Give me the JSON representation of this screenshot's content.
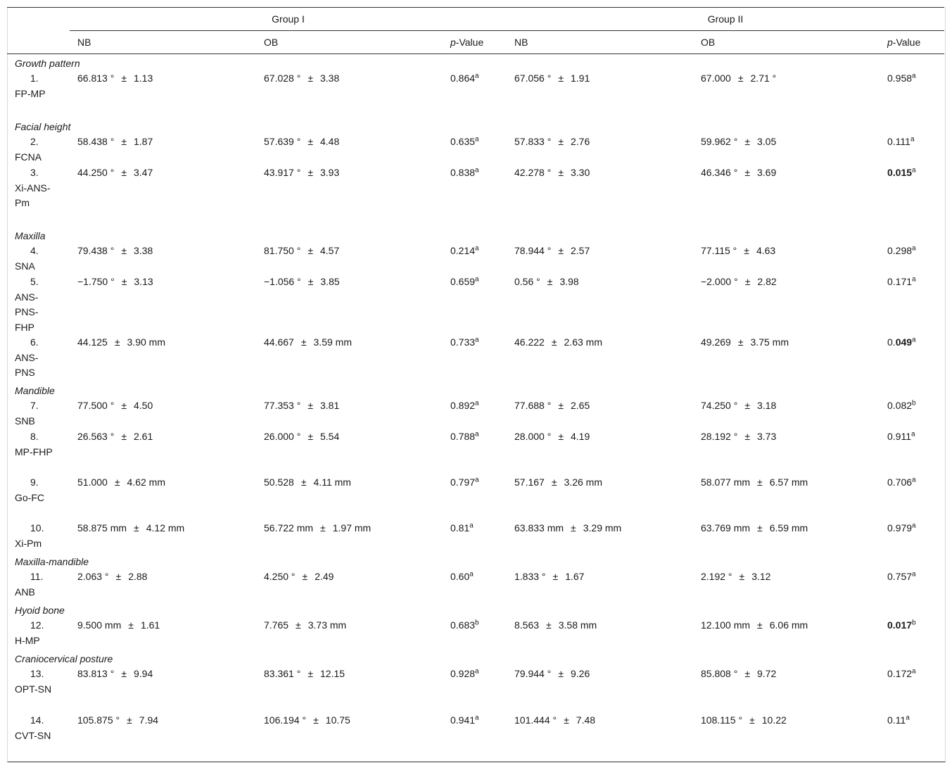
{
  "header": {
    "group1": "Group I",
    "group2": "Group II",
    "columns": [
      "NB",
      "OB",
      "p-Value",
      "NB",
      "OB",
      "p-Value"
    ]
  },
  "sections": [
    {
      "title": "Growth pattern",
      "rows": [
        {
          "num": "1.",
          "label": "FP-MP",
          "g1_nb": "66.813 °  ±  1.13",
          "g1_ob": "67.028 °  ±  3.38",
          "g1_p": "0.864",
          "g1_sup": "a",
          "g2_nb": "67.056 °  ±  1.91",
          "g2_ob": "67.000  ±  2.71 °",
          "g2_p": "0.958",
          "g2_sup": "a"
        }
      ]
    },
    {
      "title": "Facial height",
      "rows": [
        {
          "num": "2.",
          "label": "FCNA",
          "g1_nb": "58.438 °  ±  1.87",
          "g1_ob": "57.639 °  ±  4.48",
          "g1_p": "0.635",
          "g1_sup": "a",
          "g2_nb": "57.833 °  ±  2.76",
          "g2_ob": "59.962 °  ±  3.05",
          "g2_p": "0.111",
          "g2_sup": "a"
        },
        {
          "num": "3.",
          "label": "Xi-ANS-Pm",
          "g1_nb": "44.250 °  ±  3.47",
          "g1_ob": "43.917 °  ±  3.93",
          "g1_p": "0.838",
          "g1_sup": "a",
          "g2_nb": "42.278 °  ±  3.30",
          "g2_ob": "46.346 °  ±  3.69",
          "g2_p": "0.015",
          "g2_sup": "a",
          "g2_bold": "0.015"
        }
      ]
    },
    {
      "title": "Maxilla",
      "rows": [
        {
          "num": "4.",
          "label": "SNA",
          "g1_nb": "79.438 °  ±  3.38",
          "g1_ob": "81.750 °  ±  4.57",
          "g1_p": "0.214",
          "g1_sup": "a",
          "g2_nb": "78.944 °  ±  2.57",
          "g2_ob": "77.115 °  ±  4.63",
          "g2_p": "0.298",
          "g2_sup": "a"
        },
        {
          "num": "5.",
          "label": "ANS-PNS-FHP",
          "g1_nb": "−1.750 °  ±  3.13",
          "g1_ob": "−1.056 °  ±  3.85",
          "g1_p": "0.659",
          "g1_sup": "a",
          "g2_nb": "0.56 °  ±  3.98",
          "g2_ob": "−2.000 °  ±  2.82",
          "g2_p": "0.171",
          "g2_sup": "a"
        },
        {
          "num": "6.",
          "label": "ANS-PNS",
          "g1_nb": "44.125  ±  3.90  mm",
          "g1_ob": "44.667  ±  3.59  mm",
          "g1_p": "0.733",
          "g1_sup": "a",
          "g2_nb": "46.222  ±  2.63  mm",
          "g2_ob": "49.269  ±  3.75  mm",
          "g2_p": "0.049",
          "g2_sup": "a",
          "g2_p_prefix": "0.",
          "g2_bold": "049"
        }
      ]
    },
    {
      "title": "Mandible",
      "rows": [
        {
          "num": "7.",
          "label": "SNB",
          "g1_nb": "77.500 °  ±  4.50",
          "g1_ob": "77.353 °  ±  3.81",
          "g1_p": "0.892",
          "g1_sup": "a",
          "g2_nb": "77.688 °  ±  2.65",
          "g2_ob": "74.250 °  ±  3.18",
          "g2_p": "0.082",
          "g2_sup": "b"
        },
        {
          "num": "8.",
          "label": "MP-FHP",
          "g1_nb": "26.563 °  ±  2.61",
          "g1_ob": "26.000 °  ±  5.54",
          "g1_p": "0.788",
          "g1_sup": "a",
          "g2_nb": "28.000 °  ±  4.19",
          "g2_ob": "28.192 °  ±  3.73",
          "g2_p": "0.911",
          "g2_sup": "a"
        },
        {
          "num": "9.",
          "label": "Go-FC",
          "g1_nb": "51.000  ±  4.62  mm",
          "g1_ob": "50.528  ±  4.11  mm",
          "g1_p": "0.797",
          "g1_sup": "a",
          "g2_nb": "57.167  ±  3.26  mm",
          "g2_ob": "58.077  mm  ±  6.57  mm",
          "g2_p": "0.706",
          "g2_sup": "a"
        },
        {
          "num": "10.",
          "label": "Xi-Pm",
          "g1_nb": "58.875  mm  ±  4.12  mm",
          "g1_ob": "56.722  mm  ±  1.97  mm",
          "g1_p": "0.81",
          "g1_sup": "a",
          "g2_nb": "63.833  mm  ±  3.29  mm",
          "g2_ob": "63.769  mm  ±  6.59  mm",
          "g2_p": "0.979",
          "g2_sup": "a"
        }
      ]
    },
    {
      "title": "Maxilla-mandible",
      "rows": [
        {
          "num": "11.",
          "label": "ANB",
          "g1_nb": "2.063 °  ±  2.88",
          "g1_ob": "4.250 °  ±  2.49",
          "g1_p": "0.60",
          "g1_sup": "a",
          "g2_nb": "1.833 °  ±  1.67",
          "g2_ob": "2.192 °  ±  3.12",
          "g2_p": "0.757",
          "g2_sup": "a"
        }
      ]
    },
    {
      "title": "Hyoid bone",
      "rows": [
        {
          "num": "12.",
          "label": "H-MP",
          "g1_nb": "9.500  mm  ±  1.61",
          "g1_ob": "7.765  ±  3.73  mm",
          "g1_p": "0.683",
          "g1_sup": "b",
          "g2_nb": "8.563  ±  3.58  mm",
          "g2_ob": "12.100  mm  ±  6.06  mm",
          "g2_p": "0.017",
          "g2_sup": "b",
          "g2_bold": "0.017"
        }
      ]
    },
    {
      "title": "Craniocervical posture",
      "rows": [
        {
          "num": "13.",
          "label": "OPT-SN",
          "g1_nb": "83.813 °  ±  9.94",
          "g1_ob": "83.361 °  ±  12.15",
          "g1_p": "0.928",
          "g1_sup": "a",
          "g2_nb": "79.944 °  ±  9.26",
          "g2_ob": "85.808 °  ±  9.72",
          "g2_p": "0.172",
          "g2_sup": "a"
        },
        {
          "num": "14.",
          "label": "CVT-SN",
          "g1_nb": "105.875 °  ±  7.94",
          "g1_ob": "106.194 °  ±  10.75",
          "g1_p": "0.941",
          "g1_sup": "a",
          "g2_nb": "101.444 °  ±  7.48",
          "g2_ob": "108.115 °  ±  10.22",
          "g2_p": "0.11",
          "g2_sup": "a"
        }
      ]
    }
  ]
}
